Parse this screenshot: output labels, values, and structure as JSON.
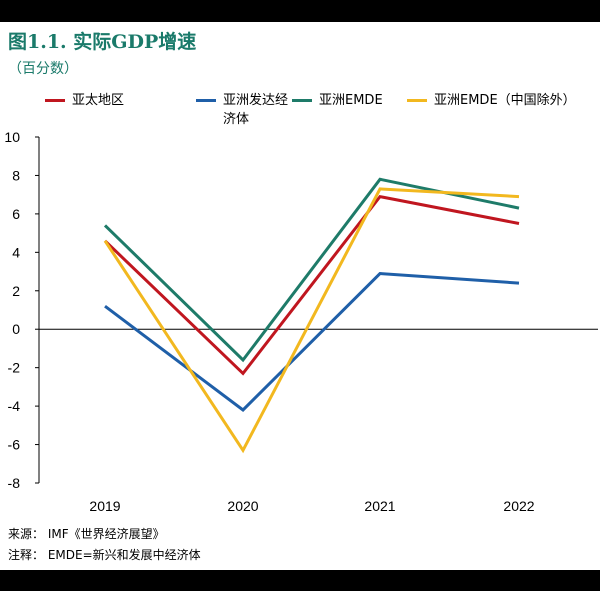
{
  "header": {
    "title": "图1.1. 实际GDP增速",
    "subtitle": "（百分数）"
  },
  "footer": {
    "source": "来源：  IMF《世界经济展望》",
    "note": "注释：  EMDE=新兴和发展中经济体"
  },
  "colors": {
    "background": "#ffffff",
    "frame": "#000000",
    "title": "#1a7a6a"
  },
  "chart_data": {
    "type": "line",
    "title": "图1.1. 实际GDP增速",
    "subtitle": "（百分数）",
    "xlabel": "",
    "ylabel": "",
    "categories": [
      "2019",
      "2020",
      "2021",
      "2022"
    ],
    "ylim": [
      -8,
      10
    ],
    "yticks": [
      10,
      8,
      6,
      4,
      2,
      0,
      -2,
      -4,
      -6,
      -8
    ],
    "ytick_labels": [
      "10",
      "8",
      "6",
      "4",
      "2",
      "0",
      "-2",
      "-4",
      "-6",
      "-8"
    ],
    "grid": false,
    "legend_position": "top",
    "series": [
      {
        "name": "亚太地区",
        "color": "#c0161f",
        "values": [
          4.6,
          -2.3,
          6.9,
          5.5
        ]
      },
      {
        "name": "亚洲发达经济体",
        "color": "#1f5fa8",
        "values": [
          1.2,
          -4.2,
          2.9,
          2.4
        ]
      },
      {
        "name": "亚洲EMDE",
        "color": "#1e7b69",
        "values": [
          5.4,
          -1.6,
          7.8,
          6.3
        ]
      },
      {
        "name": "亚洲EMDE（中国除外）",
        "color": "#f2b81f",
        "values": [
          4.6,
          -6.3,
          7.3,
          6.9
        ]
      }
    ]
  }
}
